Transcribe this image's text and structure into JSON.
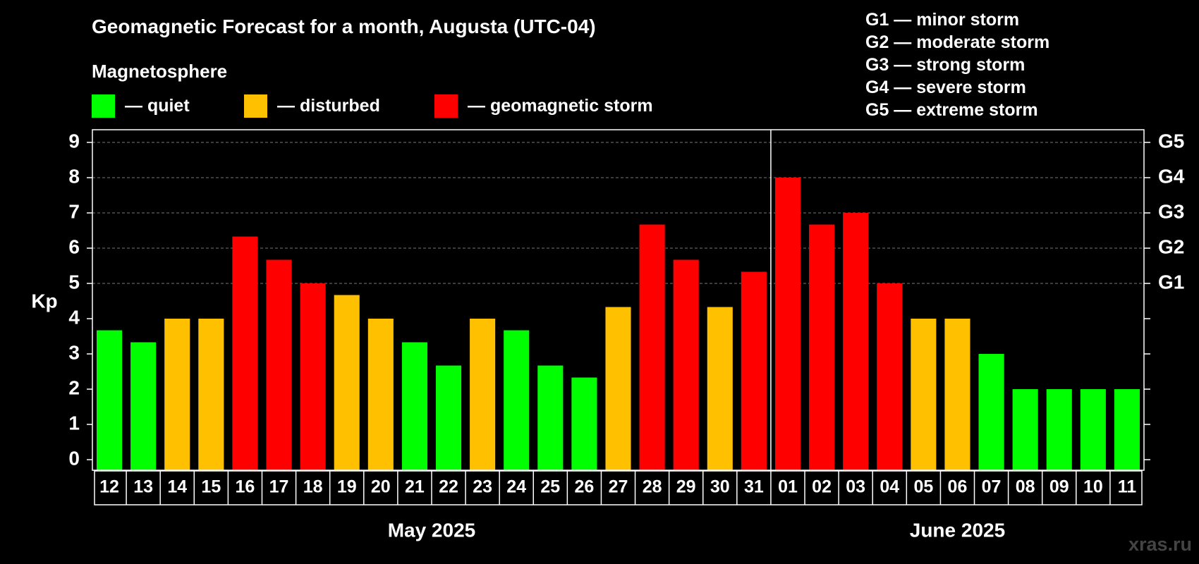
{
  "title": "Geomagnetic Forecast for a month, Augusta (UTC-04)",
  "legend": {
    "heading": "Magnetosphere",
    "items": [
      {
        "label": "— quiet",
        "color": "#00FF00"
      },
      {
        "label": "— disturbed",
        "color": "#FFC000"
      },
      {
        "label": "— geomagnetic storm",
        "color": "#FF0000"
      }
    ]
  },
  "storm_levels": [
    "G1 — minor storm",
    "G2 — moderate storm",
    "G3 — strong storm",
    "G4 — severe storm",
    "G5 — extreme storm"
  ],
  "watermark": "xras.ru",
  "chart_data": {
    "type": "bar",
    "ylabel": "Kp",
    "ylim": [
      0,
      9
    ],
    "yticks": [
      "0",
      "1",
      "2",
      "3",
      "4",
      "5",
      "6",
      "7",
      "8",
      "9"
    ],
    "right_axis_labels": [
      {
        "kp": 5,
        "label": "G1"
      },
      {
        "kp": 6,
        "label": "G2"
      },
      {
        "kp": 7,
        "label": "G3"
      },
      {
        "kp": 8,
        "label": "G4"
      },
      {
        "kp": 9,
        "label": "G5"
      }
    ],
    "gridlines_at": [
      5,
      6,
      7,
      8,
      9
    ],
    "categories": [
      "12",
      "13",
      "14",
      "15",
      "16",
      "17",
      "18",
      "19",
      "20",
      "21",
      "22",
      "23",
      "24",
      "25",
      "26",
      "27",
      "28",
      "29",
      "30",
      "31",
      "01",
      "02",
      "03",
      "04",
      "05",
      "06",
      "07",
      "08",
      "09",
      "10",
      "11"
    ],
    "values": [
      3.67,
      3.33,
      4,
      4,
      6.33,
      5.67,
      5,
      4.67,
      4,
      3.33,
      2.67,
      4,
      3.67,
      2.67,
      2.33,
      4.33,
      6.67,
      5.67,
      4.33,
      5.33,
      8,
      6.67,
      7,
      5,
      4,
      4,
      3,
      2,
      2,
      2,
      2
    ],
    "colors": {
      "quiet": "#00FF00",
      "disturbed": "#FFC000",
      "storm": "#FF0000"
    },
    "months": [
      {
        "label": "May 2025",
        "start_index": 0,
        "count": 20
      },
      {
        "label": "June 2025",
        "start_index": 20,
        "count": 11
      }
    ]
  }
}
